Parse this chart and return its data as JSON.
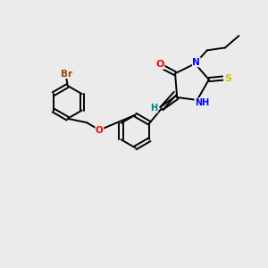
{
  "background_color": "#ebebeb",
  "bond_color": "#000000",
  "atom_colors": {
    "Br": "#964B00",
    "O": "#FF0000",
    "N": "#0000FF",
    "S": "#CCCC00",
    "NH": "#0000FF",
    "H": "#008080",
    "C": "#000000"
  },
  "figsize": [
    3.0,
    3.0
  ],
  "dpi": 100,
  "lw": 1.4,
  "r_hex": 0.62
}
